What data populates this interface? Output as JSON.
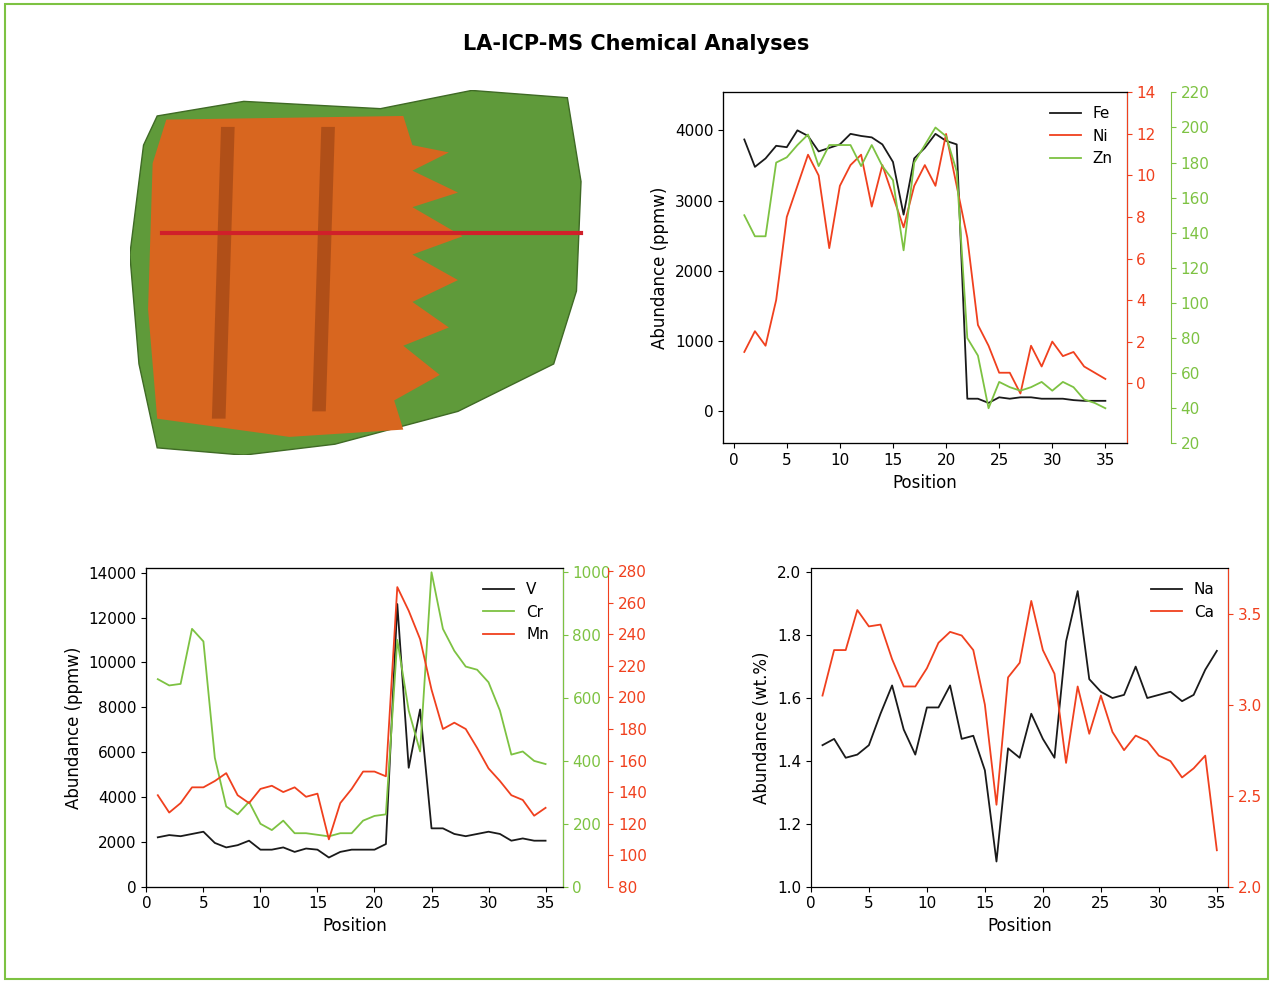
{
  "title": "LA-ICP-MS Chemical Analyses",
  "chart_data": [
    {
      "type": "line",
      "xlabel": "Position",
      "ylabel": "Abundance (ppmw)",
      "xlim": [
        -1,
        37
      ],
      "xticks": [
        0,
        5,
        10,
        15,
        20,
        25,
        30,
        35
      ],
      "ylim": [
        -455,
        4540
      ],
      "yticks": [
        0,
        1000,
        2000,
        3000,
        4000
      ],
      "y2lim": [
        -2.9,
        14
      ],
      "y2ticks": [
        0,
        2,
        4,
        6,
        8,
        10,
        12,
        14
      ],
      "y3lim": [
        20,
        220
      ],
      "y3ticks": [
        20,
        40,
        60,
        80,
        100,
        120,
        140,
        160,
        180,
        200,
        220
      ],
      "legend": "upper right",
      "x": [
        1,
        2,
        3,
        4,
        5,
        6,
        7,
        8,
        9,
        10,
        11,
        12,
        13,
        14,
        15,
        16,
        17,
        18,
        19,
        20,
        21,
        22,
        23,
        24,
        25,
        26,
        27,
        28,
        29,
        30,
        31,
        32,
        33,
        34,
        35
      ],
      "series": [
        {
          "name": "Fe",
          "color": "#1a1a1a",
          "axis": "y",
          "values": [
            3870,
            3480,
            3600,
            3780,
            3760,
            4000,
            3920,
            3700,
            3750,
            3800,
            3950,
            3920,
            3900,
            3800,
            3550,
            2800,
            3600,
            3750,
            3950,
            3850,
            3800,
            180,
            180,
            120,
            200,
            180,
            200,
            200,
            180,
            180,
            180,
            160,
            150,
            150,
            150
          ]
        },
        {
          "name": "Ni",
          "color": "#f0401e",
          "axis": "y2",
          "values": [
            1.5,
            2.5,
            1.8,
            4,
            8,
            9.5,
            11,
            10,
            6.5,
            9.5,
            10.5,
            11,
            8.5,
            10.5,
            9,
            7.5,
            9.5,
            10.5,
            9.5,
            12,
            9.5,
            7,
            2.8,
            1.8,
            0.5,
            0.5,
            -0.5,
            1.8,
            0.8,
            2,
            1.3,
            1.5,
            0.8,
            0.5,
            0.2
          ]
        },
        {
          "name": "Zn",
          "color": "#7dc242",
          "axis": "y3",
          "values": [
            150,
            138,
            138,
            180,
            183,
            190,
            196,
            178,
            190,
            190,
            190,
            178,
            190,
            178,
            170,
            130,
            180,
            190,
            200,
            195,
            175,
            80,
            70,
            40,
            55,
            52,
            50,
            52,
            55,
            50,
            55,
            52,
            45,
            43,
            40
          ]
        }
      ]
    },
    {
      "type": "line",
      "xlabel": "Position",
      "ylabel": "Abundance (ppmw)",
      "xlim": [
        0,
        36.5
      ],
      "xticks": [
        0,
        5,
        10,
        15,
        20,
        25,
        30,
        35
      ],
      "ylim": [
        0,
        14200
      ],
      "yticks": [
        0,
        2000,
        4000,
        6000,
        8000,
        10000,
        12000,
        14000
      ],
      "y2lim": [
        0,
        1013
      ],
      "y2ticks": [
        0,
        200,
        400,
        600,
        800,
        1000
      ],
      "y3lim": [
        80,
        282
      ],
      "y3ticks": [
        80,
        100,
        120,
        140,
        160,
        180,
        200,
        220,
        240,
        260,
        280
      ],
      "legend": "upper right",
      "x": [
        1,
        2,
        3,
        4,
        5,
        6,
        7,
        8,
        9,
        10,
        11,
        12,
        13,
        14,
        15,
        16,
        17,
        18,
        19,
        20,
        21,
        22,
        23,
        24,
        25,
        26,
        27,
        28,
        29,
        30,
        31,
        32,
        33,
        34,
        35
      ],
      "series": [
        {
          "name": "V",
          "color": "#1a1a1a",
          "axis": "y",
          "values": [
            2200,
            2300,
            2250,
            2350,
            2450,
            1950,
            1750,
            1850,
            2050,
            1650,
            1650,
            1750,
            1550,
            1700,
            1650,
            1300,
            1550,
            1650,
            1650,
            1650,
            1900,
            12600,
            5300,
            7900,
            2600,
            2600,
            2350,
            2250,
            2350,
            2450,
            2350,
            2050,
            2150,
            2050,
            2050
          ]
        },
        {
          "name": "Cr",
          "color": "#7dc242",
          "axis": "y2",
          "values": [
            660,
            640,
            645,
            820,
            780,
            410,
            255,
            230,
            270,
            200,
            180,
            210,
            170,
            170,
            165,
            160,
            170,
            170,
            210,
            225,
            230,
            785,
            560,
            430,
            1000,
            820,
            750,
            700,
            690,
            650,
            560,
            420,
            430,
            400,
            390
          ]
        },
        {
          "name": "Mn",
          "color": "#f0401e",
          "axis": "y3",
          "values": [
            138,
            127,
            133,
            143,
            143,
            147,
            152,
            138,
            133,
            142,
            144,
            140,
            143,
            137,
            139,
            110,
            133,
            142,
            153,
            153,
            150,
            270,
            255,
            237,
            205,
            180,
            184,
            180,
            168,
            155,
            147,
            138,
            135,
            125,
            130
          ]
        }
      ]
    },
    {
      "type": "line",
      "xlabel": "Position",
      "ylabel": "Abundance (wt.%)",
      "xlim": [
        0,
        36
      ],
      "xticks": [
        0,
        5,
        10,
        15,
        20,
        25,
        30,
        35
      ],
      "ylim": [
        1.0,
        2.013
      ],
      "yticks": [
        1.0,
        1.2,
        1.4,
        1.6,
        1.8,
        2.0
      ],
      "y2lim": [
        2.0,
        3.75
      ],
      "y2ticks": [
        2.0,
        2.5,
        3.0,
        3.5
      ],
      "legend": "upper right",
      "x": [
        1,
        2,
        3,
        4,
        5,
        6,
        7,
        8,
        9,
        10,
        11,
        12,
        13,
        14,
        15,
        16,
        17,
        18,
        19,
        20,
        21,
        22,
        23,
        24,
        25,
        26,
        27,
        28,
        29,
        30,
        31,
        32,
        33,
        34,
        35
      ],
      "series": [
        {
          "name": "Na",
          "color": "#1a1a1a",
          "axis": "y",
          "values": [
            1.45,
            1.47,
            1.41,
            1.42,
            1.45,
            1.55,
            1.64,
            1.5,
            1.42,
            1.57,
            1.57,
            1.64,
            1.47,
            1.48,
            1.37,
            1.08,
            1.44,
            1.41,
            1.55,
            1.47,
            1.41,
            1.78,
            1.94,
            1.66,
            1.62,
            1.6,
            1.61,
            1.7,
            1.6,
            1.61,
            1.62,
            1.59,
            1.61,
            1.69,
            1.75
          ]
        },
        {
          "name": "Ca",
          "color": "#f0401e",
          "axis": "y2",
          "values": [
            3.05,
            3.3,
            3.3,
            3.52,
            3.43,
            3.44,
            3.25,
            3.1,
            3.1,
            3.2,
            3.34,
            3.4,
            3.38,
            3.3,
            3.0,
            2.45,
            3.15,
            3.23,
            3.57,
            3.3,
            3.17,
            2.68,
            3.1,
            2.84,
            3.05,
            2.85,
            2.75,
            2.83,
            2.8,
            2.72,
            2.69,
            2.6,
            2.65,
            2.72,
            2.2
          ]
        }
      ]
    }
  ]
}
